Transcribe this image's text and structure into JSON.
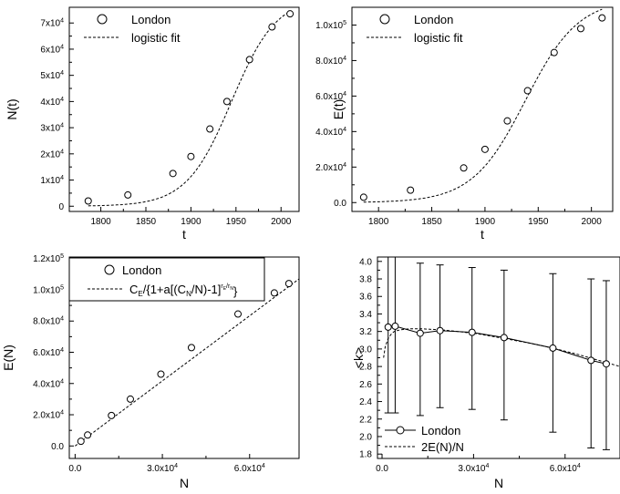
{
  "chart_data": [
    {
      "id": "p1",
      "type": "scatter",
      "ylabel": "N(t)",
      "xlabel": "t",
      "xlim": [
        1765,
        2020
      ],
      "ylim": [
        -2000,
        76000
      ],
      "xticks": [
        {
          "v": 1800,
          "label": "1800"
        },
        {
          "v": 1850,
          "label": "1850"
        },
        {
          "v": 1900,
          "label": "1900"
        },
        {
          "v": 1950,
          "label": "1950"
        },
        {
          "v": 2000,
          "label": "2000"
        }
      ],
      "yticks": [
        {
          "v": 0,
          "label": "0"
        },
        {
          "v": 10000,
          "label": "1x10",
          "sup": "4"
        },
        {
          "v": 20000,
          "label": "2x10",
          "sup": "4"
        },
        {
          "v": 30000,
          "label": "3x10",
          "sup": "4"
        },
        {
          "v": 40000,
          "label": "4x10",
          "sup": "4"
        },
        {
          "v": 50000,
          "label": "5x10",
          "sup": "4"
        },
        {
          "v": 60000,
          "label": "6x10",
          "sup": "4"
        },
        {
          "v": 70000,
          "label": "7x10",
          "sup": "4"
        }
      ],
      "legend": {
        "placement": "top-left",
        "marker_label": "London",
        "line_label": "logistic fit"
      },
      "points": {
        "x": [
          1786,
          1830,
          1880,
          1900,
          1921,
          1940,
          1965,
          1990,
          2010
        ],
        "y": [
          2000,
          4300,
          12500,
          19000,
          29500,
          40000,
          56000,
          68500,
          73500
        ]
      },
      "fit": {
        "type": "logistic",
        "K": 80000,
        "t0": 1945,
        "r": 0.04,
        "xrange": [
          1786,
          2010
        ]
      }
    },
    {
      "id": "p2",
      "type": "scatter",
      "ylabel": "E(t)",
      "xlabel": "t",
      "xlim": [
        1775,
        2020
      ],
      "ylim": [
        -5000,
        110000
      ],
      "xticks": [
        {
          "v": 1800,
          "label": "1800"
        },
        {
          "v": 1850,
          "label": "1850"
        },
        {
          "v": 1900,
          "label": "1900"
        },
        {
          "v": 1950,
          "label": "1950"
        },
        {
          "v": 2000,
          "label": "2000"
        }
      ],
      "yticks": [
        {
          "v": 0,
          "label": "0.0"
        },
        {
          "v": 20000,
          "label": "2.0x10",
          "sup": "4"
        },
        {
          "v": 40000,
          "label": "4.0x10",
          "sup": "4"
        },
        {
          "v": 60000,
          "label": "6.0x10",
          "sup": "4"
        },
        {
          "v": 80000,
          "label": "8.0x10",
          "sup": "4"
        },
        {
          "v": 100000,
          "label": "1.0x10",
          "sup": "5"
        }
      ],
      "legend": {
        "placement": "top-left",
        "marker_label": "London",
        "line_label": "logistic fit"
      },
      "points": {
        "x": [
          1786,
          1830,
          1880,
          1900,
          1921,
          1940,
          1965,
          1990,
          2010
        ],
        "y": [
          3000,
          7000,
          19500,
          30000,
          46000,
          63000,
          84500,
          98000,
          104000
        ]
      },
      "fit": {
        "type": "logistic",
        "K": 115000,
        "t0": 1938,
        "r": 0.04,
        "xrange": [
          1786,
          2010
        ]
      }
    },
    {
      "id": "p3",
      "type": "scatter",
      "ylabel": "E(N)",
      "xlabel": "N",
      "xlim": [
        -2000,
        77000
      ],
      "ylim": [
        -8000,
        121000
      ],
      "xticks": [
        {
          "v": 0,
          "label": "0.0"
        },
        {
          "v": 30000,
          "label": "3.0x10",
          "sup": "4"
        },
        {
          "v": 60000,
          "label": "6.0x10",
          "sup": "4"
        }
      ],
      "yticks": [
        {
          "v": 0,
          "label": "0.0"
        },
        {
          "v": 20000,
          "label": "2.0x10",
          "sup": "4"
        },
        {
          "v": 40000,
          "label": "4.0x10",
          "sup": "4"
        },
        {
          "v": 60000,
          "label": "6.0x10",
          "sup": "4"
        },
        {
          "v": 80000,
          "label": "8.0x10",
          "sup": "4"
        },
        {
          "v": 100000,
          "label": "1.0x10",
          "sup": "5"
        },
        {
          "v": 120000,
          "label": "1.2x10",
          "sup": "5"
        }
      ],
      "legend": {
        "placement": "top-left",
        "marker_label": "London",
        "line_label_parts": [
          "C",
          "E",
          "/{1+a[(C",
          "N",
          "/N)-1]",
          "r",
          "E",
          "/r",
          "N",
          "}"
        ]
      },
      "points": {
        "x": [
          2000,
          4300,
          12500,
          19000,
          29500,
          40000,
          56000,
          68500,
          73500
        ],
        "y": [
          3000,
          7000,
          19500,
          30000,
          46000,
          63000,
          84500,
          98000,
          104000
        ]
      },
      "fit": {
        "type": "line",
        "x": [
          0,
          77000
        ],
        "y": [
          0,
          107000
        ]
      }
    },
    {
      "id": "p4",
      "type": "line",
      "ylabel": "<k>",
      "xlabel": "N",
      "xlim": [
        -1500,
        78000
      ],
      "ylim": [
        1.75,
        4.05
      ],
      "xticks": [
        {
          "v": 0,
          "label": "0.0"
        },
        {
          "v": 30000,
          "label": "3.0x10",
          "sup": "4"
        },
        {
          "v": 60000,
          "label": "6.0x10",
          "sup": "4"
        }
      ],
      "yticks": [
        {
          "v": 1.8,
          "label": "1.8"
        },
        {
          "v": 2.0,
          "label": "2.0"
        },
        {
          "v": 2.2,
          "label": "2.2"
        },
        {
          "v": 2.4,
          "label": "2.4"
        },
        {
          "v": 2.6,
          "label": "2.6"
        },
        {
          "v": 2.8,
          "label": "2.8"
        },
        {
          "v": 3.0,
          "label": "3.0"
        },
        {
          "v": 3.2,
          "label": "3.2"
        },
        {
          "v": 3.4,
          "label": "3.4"
        },
        {
          "v": 3.6,
          "label": "3.6"
        },
        {
          "v": 3.8,
          "label": "3.8"
        },
        {
          "v": 4.0,
          "label": "4.0"
        }
      ],
      "legend": {
        "placement": "bottom-left",
        "marker_label": "London",
        "line_label": "2E(N)/N"
      },
      "points": {
        "x": [
          2000,
          4300,
          12500,
          19000,
          29500,
          40000,
          56000,
          68500,
          73500
        ],
        "y": [
          3.25,
          3.26,
          3.18,
          3.21,
          3.19,
          3.13,
          3.01,
          2.87,
          2.83
        ],
        "err_low": [
          2.27,
          2.27,
          2.24,
          2.33,
          2.31,
          2.19,
          2.05,
          1.87,
          1.85
        ],
        "err_high": [
          4.05,
          4.05,
          3.98,
          3.96,
          3.93,
          3.9,
          3.86,
          3.8,
          3.78
        ]
      },
      "fit": {
        "type": "curve",
        "x": [
          500,
          1000,
          2000,
          3000,
          4000,
          6000,
          9000,
          13000,
          19000,
          25000,
          32000,
          40000,
          48000,
          56000,
          64000,
          72000,
          78000
        ],
        "y": [
          2.9,
          3.02,
          3.12,
          3.17,
          3.2,
          3.22,
          3.23,
          3.23,
          3.22,
          3.2,
          3.17,
          3.12,
          3.07,
          3.01,
          2.94,
          2.86,
          2.8
        ]
      }
    }
  ]
}
